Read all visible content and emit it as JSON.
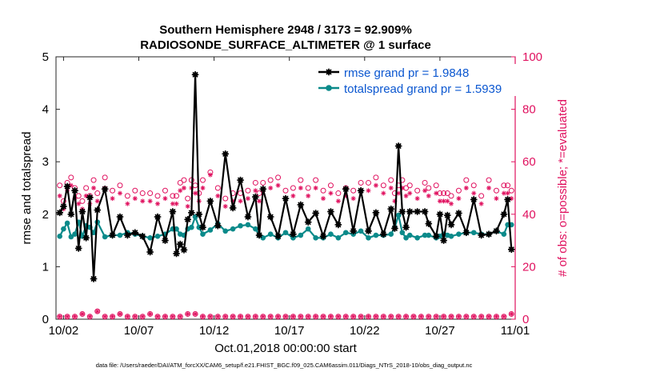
{
  "chart_data": {
    "type": "line",
    "title": "Southern Hemisphere 2948 / 3173 = 92.909%",
    "subtitle": "RADIOSONDE_SURFACE_ALTIMETER @ 1 surface",
    "xlabel": "Oct.01,2018 00:00:00 start",
    "ylabel_left": "rmse and totalspread",
    "ylabel_right": "# of obs: o=possible; *=evaluated",
    "footnote": "data file: /Users/raeder/DAI/ATM_forcXX/CAM6_setup/f.e21.FHIST_BGC.f09_025.CAM6assim.011/Diags_NTrS_2018-10/obs_diag_output.nc",
    "xlim": [
      1.5,
      32.0
    ],
    "ylim_left": [
      0,
      5
    ],
    "ylim_right": [
      0,
      100
    ],
    "x_ticks": [
      2,
      7,
      12,
      17,
      22,
      27,
      32
    ],
    "x_tick_labels": [
      "10/02",
      "10/07",
      "10/12",
      "10/17",
      "10/22",
      "10/27",
      "11/01"
    ],
    "y_left_ticks": [
      "0",
      "1",
      "2",
      "3",
      "4",
      "5"
    ],
    "y_right_ticks": [
      "0",
      "20",
      "40",
      "60",
      "80",
      "100"
    ],
    "colors": {
      "rmse": "#000000",
      "spread": "#0a8a8a",
      "counts": "#e0115f",
      "legend_text": "#0b57d0",
      "right_axis": "#e0115f"
    },
    "series": [
      {
        "name": "rmse grand pr = 1.9848",
        "values": [
          [
            1.75,
            2.03
          ],
          [
            2.0,
            2.15
          ],
          [
            2.25,
            2.53
          ],
          [
            2.5,
            2.0
          ],
          [
            2.75,
            2.45
          ],
          [
            3.0,
            1.35
          ],
          [
            3.25,
            2.05
          ],
          [
            3.5,
            1.55
          ],
          [
            3.75,
            2.32
          ],
          [
            4.0,
            0.77
          ],
          [
            4.25,
            2.08
          ],
          [
            4.75,
            2.48
          ],
          [
            5.25,
            1.6
          ],
          [
            5.75,
            1.95
          ],
          [
            6.25,
            1.6
          ],
          [
            6.75,
            1.65
          ],
          [
            7.25,
            1.58
          ],
          [
            7.75,
            1.28
          ],
          [
            8.25,
            1.95
          ],
          [
            8.75,
            1.5
          ],
          [
            9.25,
            2.05
          ],
          [
            9.5,
            1.25
          ],
          [
            9.75,
            1.43
          ],
          [
            10.0,
            1.32
          ],
          [
            10.25,
            1.9
          ],
          [
            10.5,
            2.03
          ],
          [
            10.75,
            4.66
          ],
          [
            11.0,
            2.0
          ],
          [
            11.25,
            1.75
          ],
          [
            11.75,
            2.25
          ],
          [
            12.25,
            1.78
          ],
          [
            12.75,
            3.15
          ],
          [
            13.25,
            2.12
          ],
          [
            13.75,
            2.65
          ],
          [
            14.25,
            1.95
          ],
          [
            14.75,
            2.33
          ],
          [
            15.0,
            1.6
          ],
          [
            15.25,
            2.48
          ],
          [
            15.75,
            1.95
          ],
          [
            16.25,
            1.58
          ],
          [
            16.75,
            2.3
          ],
          [
            17.25,
            1.62
          ],
          [
            17.75,
            2.18
          ],
          [
            18.25,
            1.85
          ],
          [
            18.75,
            2.02
          ],
          [
            19.25,
            1.58
          ],
          [
            19.75,
            2.05
          ],
          [
            20.25,
            1.8
          ],
          [
            20.75,
            2.48
          ],
          [
            21.25,
            1.68
          ],
          [
            21.75,
            2.45
          ],
          [
            22.25,
            1.68
          ],
          [
            22.75,
            2.03
          ],
          [
            23.25,
            1.62
          ],
          [
            23.75,
            2.1
          ],
          [
            24.0,
            1.73
          ],
          [
            24.25,
            3.3
          ],
          [
            24.5,
            2.05
          ],
          [
            24.75,
            1.75
          ],
          [
            25.0,
            2.05
          ],
          [
            25.5,
            2.05
          ],
          [
            26.0,
            2.05
          ],
          [
            26.25,
            1.82
          ],
          [
            26.75,
            1.58
          ],
          [
            27.0,
            2.0
          ],
          [
            27.25,
            1.5
          ],
          [
            27.5,
            1.98
          ],
          [
            27.75,
            1.8
          ],
          [
            28.25,
            2.02
          ],
          [
            28.75,
            1.65
          ],
          [
            29.25,
            2.28
          ],
          [
            29.75,
            1.6
          ],
          [
            30.25,
            1.62
          ],
          [
            30.75,
            1.68
          ],
          [
            31.25,
            2.0
          ],
          [
            31.5,
            2.28
          ],
          [
            31.75,
            1.33
          ]
        ]
      },
      {
        "name": "totalspread grand pr = 1.5939",
        "values": [
          [
            1.75,
            1.58
          ],
          [
            2.0,
            1.72
          ],
          [
            2.25,
            1.83
          ],
          [
            2.5,
            1.57
          ],
          [
            2.75,
            1.62
          ],
          [
            3.0,
            1.85
          ],
          [
            3.25,
            1.58
          ],
          [
            3.5,
            1.78
          ],
          [
            3.75,
            1.75
          ],
          [
            4.0,
            1.65
          ],
          [
            4.25,
            1.85
          ],
          [
            4.75,
            1.57
          ],
          [
            5.25,
            1.6
          ],
          [
            5.75,
            1.6
          ],
          [
            6.25,
            1.65
          ],
          [
            6.75,
            1.62
          ],
          [
            7.25,
            1.58
          ],
          [
            7.75,
            1.55
          ],
          [
            8.25,
            1.58
          ],
          [
            8.75,
            1.62
          ],
          [
            9.25,
            1.72
          ],
          [
            9.5,
            1.72
          ],
          [
            9.75,
            1.62
          ],
          [
            10.0,
            1.6
          ],
          [
            10.25,
            1.72
          ],
          [
            10.5,
            1.75
          ],
          [
            10.75,
            1.95
          ],
          [
            11.0,
            1.75
          ],
          [
            11.25,
            1.62
          ],
          [
            11.75,
            1.7
          ],
          [
            12.25,
            1.82
          ],
          [
            12.75,
            1.68
          ],
          [
            13.25,
            1.72
          ],
          [
            13.75,
            1.78
          ],
          [
            14.25,
            1.8
          ],
          [
            14.75,
            1.72
          ],
          [
            15.0,
            1.6
          ],
          [
            15.25,
            1.55
          ],
          [
            15.75,
            1.62
          ],
          [
            16.25,
            1.55
          ],
          [
            16.75,
            1.65
          ],
          [
            17.25,
            1.55
          ],
          [
            17.75,
            1.6
          ],
          [
            18.25,
            1.72
          ],
          [
            18.75,
            1.55
          ],
          [
            19.25,
            1.55
          ],
          [
            19.75,
            1.62
          ],
          [
            20.25,
            1.55
          ],
          [
            20.75,
            1.65
          ],
          [
            21.25,
            1.62
          ],
          [
            21.75,
            1.68
          ],
          [
            22.25,
            1.55
          ],
          [
            22.75,
            1.6
          ],
          [
            23.25,
            1.6
          ],
          [
            23.75,
            1.62
          ],
          [
            24.0,
            1.75
          ],
          [
            24.25,
            1.98
          ],
          [
            24.5,
            1.65
          ],
          [
            24.75,
            1.55
          ],
          [
            25.0,
            1.6
          ],
          [
            25.5,
            1.55
          ],
          [
            26.0,
            1.6
          ],
          [
            26.25,
            1.6
          ],
          [
            26.75,
            1.55
          ],
          [
            27.0,
            1.58
          ],
          [
            27.25,
            1.62
          ],
          [
            27.5,
            1.6
          ],
          [
            27.75,
            1.58
          ],
          [
            28.25,
            1.62
          ],
          [
            28.75,
            1.65
          ],
          [
            29.25,
            1.65
          ],
          [
            29.75,
            1.62
          ],
          [
            30.25,
            1.62
          ],
          [
            30.75,
            1.68
          ],
          [
            31.25,
            1.62
          ],
          [
            31.5,
            1.8
          ],
          [
            31.75,
            1.8
          ]
        ]
      }
    ],
    "possible_counts": [
      [
        1.75,
        51
      ],
      [
        2.0,
        45
      ],
      [
        2.25,
        52
      ],
      [
        2.5,
        54
      ],
      [
        2.75,
        50
      ],
      [
        3.0,
        47
      ],
      [
        3.25,
        45
      ],
      [
        3.5,
        50
      ],
      [
        3.75,
        47
      ],
      [
        4.0,
        53
      ],
      [
        4.25,
        48
      ],
      [
        4.75,
        54
      ],
      [
        5.25,
        49
      ],
      [
        5.75,
        51
      ],
      [
        6.25,
        47
      ],
      [
        6.75,
        49
      ],
      [
        7.25,
        48
      ],
      [
        7.75,
        48
      ],
      [
        8.25,
        47
      ],
      [
        8.75,
        49
      ],
      [
        9.25,
        47
      ],
      [
        9.5,
        47
      ],
      [
        9.75,
        52
      ],
      [
        10.0,
        53
      ],
      [
        10.25,
        46
      ],
      [
        10.5,
        53
      ],
      [
        10.75,
        51
      ],
      [
        11.0,
        48
      ],
      [
        11.25,
        53
      ],
      [
        11.75,
        56
      ],
      [
        12.25,
        50
      ],
      [
        12.75,
        46
      ],
      [
        13.25,
        48
      ],
      [
        13.75,
        48
      ],
      [
        14.25,
        49
      ],
      [
        14.75,
        52
      ],
      [
        15.0,
        48
      ],
      [
        15.25,
        52
      ],
      [
        15.75,
        53
      ],
      [
        16.25,
        54
      ],
      [
        16.75,
        49
      ],
      [
        17.25,
        50
      ],
      [
        17.75,
        53
      ],
      [
        18.25,
        50
      ],
      [
        18.75,
        53
      ],
      [
        19.25,
        49
      ],
      [
        19.75,
        51
      ],
      [
        20.25,
        48
      ],
      [
        20.75,
        50
      ],
      [
        21.25,
        49
      ],
      [
        21.75,
        52
      ],
      [
        22.25,
        52
      ],
      [
        22.75,
        54
      ],
      [
        23.25,
        51
      ],
      [
        23.75,
        53
      ],
      [
        24.0,
        48
      ],
      [
        24.25,
        51
      ],
      [
        24.5,
        53
      ],
      [
        24.75,
        50
      ],
      [
        25.0,
        51
      ],
      [
        25.5,
        49
      ],
      [
        26.0,
        52
      ],
      [
        26.25,
        50
      ],
      [
        26.75,
        51
      ],
      [
        27.0,
        48
      ],
      [
        27.25,
        48
      ],
      [
        27.5,
        48
      ],
      [
        27.75,
        47
      ],
      [
        28.25,
        49
      ],
      [
        28.75,
        53
      ],
      [
        29.25,
        51
      ],
      [
        29.75,
        47
      ],
      [
        30.25,
        53
      ],
      [
        30.75,
        49
      ],
      [
        31.25,
        51
      ],
      [
        31.5,
        51
      ],
      [
        31.75,
        49
      ]
    ],
    "evaluated_counts": [
      [
        1.75,
        47
      ],
      [
        2.0,
        42
      ],
      [
        2.25,
        49
      ],
      [
        2.5,
        51
      ],
      [
        2.75,
        46
      ],
      [
        3.0,
        44
      ],
      [
        3.25,
        42
      ],
      [
        3.5,
        47
      ],
      [
        3.75,
        44
      ],
      [
        4.0,
        50
      ],
      [
        4.25,
        45
      ],
      [
        4.75,
        50
      ],
      [
        5.25,
        46
      ],
      [
        5.75,
        48
      ],
      [
        6.25,
        44
      ],
      [
        6.75,
        46
      ],
      [
        7.25,
        45
      ],
      [
        7.75,
        45
      ],
      [
        8.25,
        44
      ],
      [
        8.75,
        46
      ],
      [
        9.25,
        44
      ],
      [
        9.5,
        44
      ],
      [
        9.75,
        49
      ],
      [
        10.0,
        50
      ],
      [
        10.25,
        43
      ],
      [
        10.5,
        50
      ],
      [
        10.75,
        48
      ],
      [
        11.0,
        45
      ],
      [
        11.25,
        50
      ],
      [
        11.75,
        55
      ],
      [
        12.25,
        47
      ],
      [
        12.75,
        43
      ],
      [
        13.25,
        45
      ],
      [
        13.75,
        45
      ],
      [
        14.25,
        46
      ],
      [
        14.75,
        49
      ],
      [
        15.0,
        45
      ],
      [
        15.25,
        49
      ],
      [
        15.75,
        50
      ],
      [
        16.25,
        51
      ],
      [
        16.75,
        46
      ],
      [
        17.25,
        47
      ],
      [
        17.75,
        50
      ],
      [
        18.25,
        47
      ],
      [
        18.75,
        50
      ],
      [
        19.25,
        46
      ],
      [
        19.75,
        48
      ],
      [
        20.25,
        45
      ],
      [
        20.75,
        47
      ],
      [
        21.25,
        46
      ],
      [
        21.75,
        49
      ],
      [
        22.25,
        49
      ],
      [
        22.75,
        51
      ],
      [
        23.25,
        48
      ],
      [
        23.75,
        50
      ],
      [
        24.0,
        45
      ],
      [
        24.25,
        48
      ],
      [
        24.5,
        50
      ],
      [
        24.75,
        47
      ],
      [
        25.0,
        48
      ],
      [
        25.5,
        46
      ],
      [
        26.0,
        49
      ],
      [
        26.25,
        47
      ],
      [
        26.75,
        48
      ],
      [
        27.0,
        45
      ],
      [
        27.25,
        45
      ],
      [
        27.5,
        45
      ],
      [
        27.75,
        44
      ],
      [
        28.25,
        46
      ],
      [
        28.75,
        50
      ],
      [
        29.25,
        48
      ],
      [
        29.75,
        44
      ],
      [
        30.25,
        50
      ],
      [
        30.75,
        46
      ],
      [
        31.25,
        48
      ],
      [
        31.5,
        48
      ],
      [
        31.75,
        46
      ]
    ],
    "possible_low": [
      [
        1.75,
        1
      ],
      [
        2.25,
        1
      ],
      [
        2.75,
        1
      ],
      [
        3.25,
        2
      ],
      [
        3.75,
        1
      ],
      [
        4.25,
        3
      ],
      [
        4.75,
        1
      ],
      [
        5.25,
        1
      ],
      [
        5.75,
        2
      ],
      [
        6.25,
        1
      ],
      [
        6.75,
        1
      ],
      [
        7.25,
        1
      ],
      [
        7.75,
        2
      ],
      [
        8.25,
        1
      ],
      [
        8.75,
        1
      ],
      [
        9.25,
        1
      ],
      [
        9.75,
        1
      ],
      [
        10.25,
        2
      ],
      [
        10.75,
        2
      ],
      [
        11.25,
        1
      ],
      [
        11.75,
        1
      ],
      [
        12.25,
        1
      ],
      [
        12.75,
        1
      ],
      [
        13.25,
        1
      ],
      [
        13.75,
        1
      ],
      [
        14.25,
        1
      ],
      [
        14.75,
        1
      ],
      [
        15.25,
        1
      ],
      [
        15.75,
        1
      ],
      [
        16.25,
        1
      ],
      [
        16.75,
        1
      ],
      [
        17.25,
        1
      ],
      [
        17.75,
        1
      ],
      [
        18.25,
        1
      ],
      [
        18.75,
        1
      ],
      [
        19.25,
        1
      ],
      [
        19.75,
        1
      ],
      [
        20.25,
        1
      ],
      [
        20.75,
        1
      ],
      [
        21.25,
        1
      ],
      [
        21.75,
        1
      ],
      [
        22.25,
        1
      ],
      [
        22.75,
        1
      ],
      [
        23.25,
        1
      ],
      [
        23.75,
        1
      ],
      [
        24.25,
        1
      ],
      [
        24.75,
        1
      ],
      [
        25.25,
        1
      ],
      [
        25.75,
        1
      ],
      [
        26.25,
        1
      ],
      [
        26.75,
        1
      ],
      [
        27.25,
        1
      ],
      [
        27.75,
        1
      ],
      [
        28.25,
        1
      ],
      [
        28.75,
        1
      ],
      [
        29.25,
        1
      ],
      [
        29.75,
        1
      ],
      [
        30.25,
        1
      ],
      [
        30.75,
        1
      ],
      [
        31.25,
        1
      ],
      [
        31.75,
        2
      ]
    ],
    "legend": "top-right"
  }
}
